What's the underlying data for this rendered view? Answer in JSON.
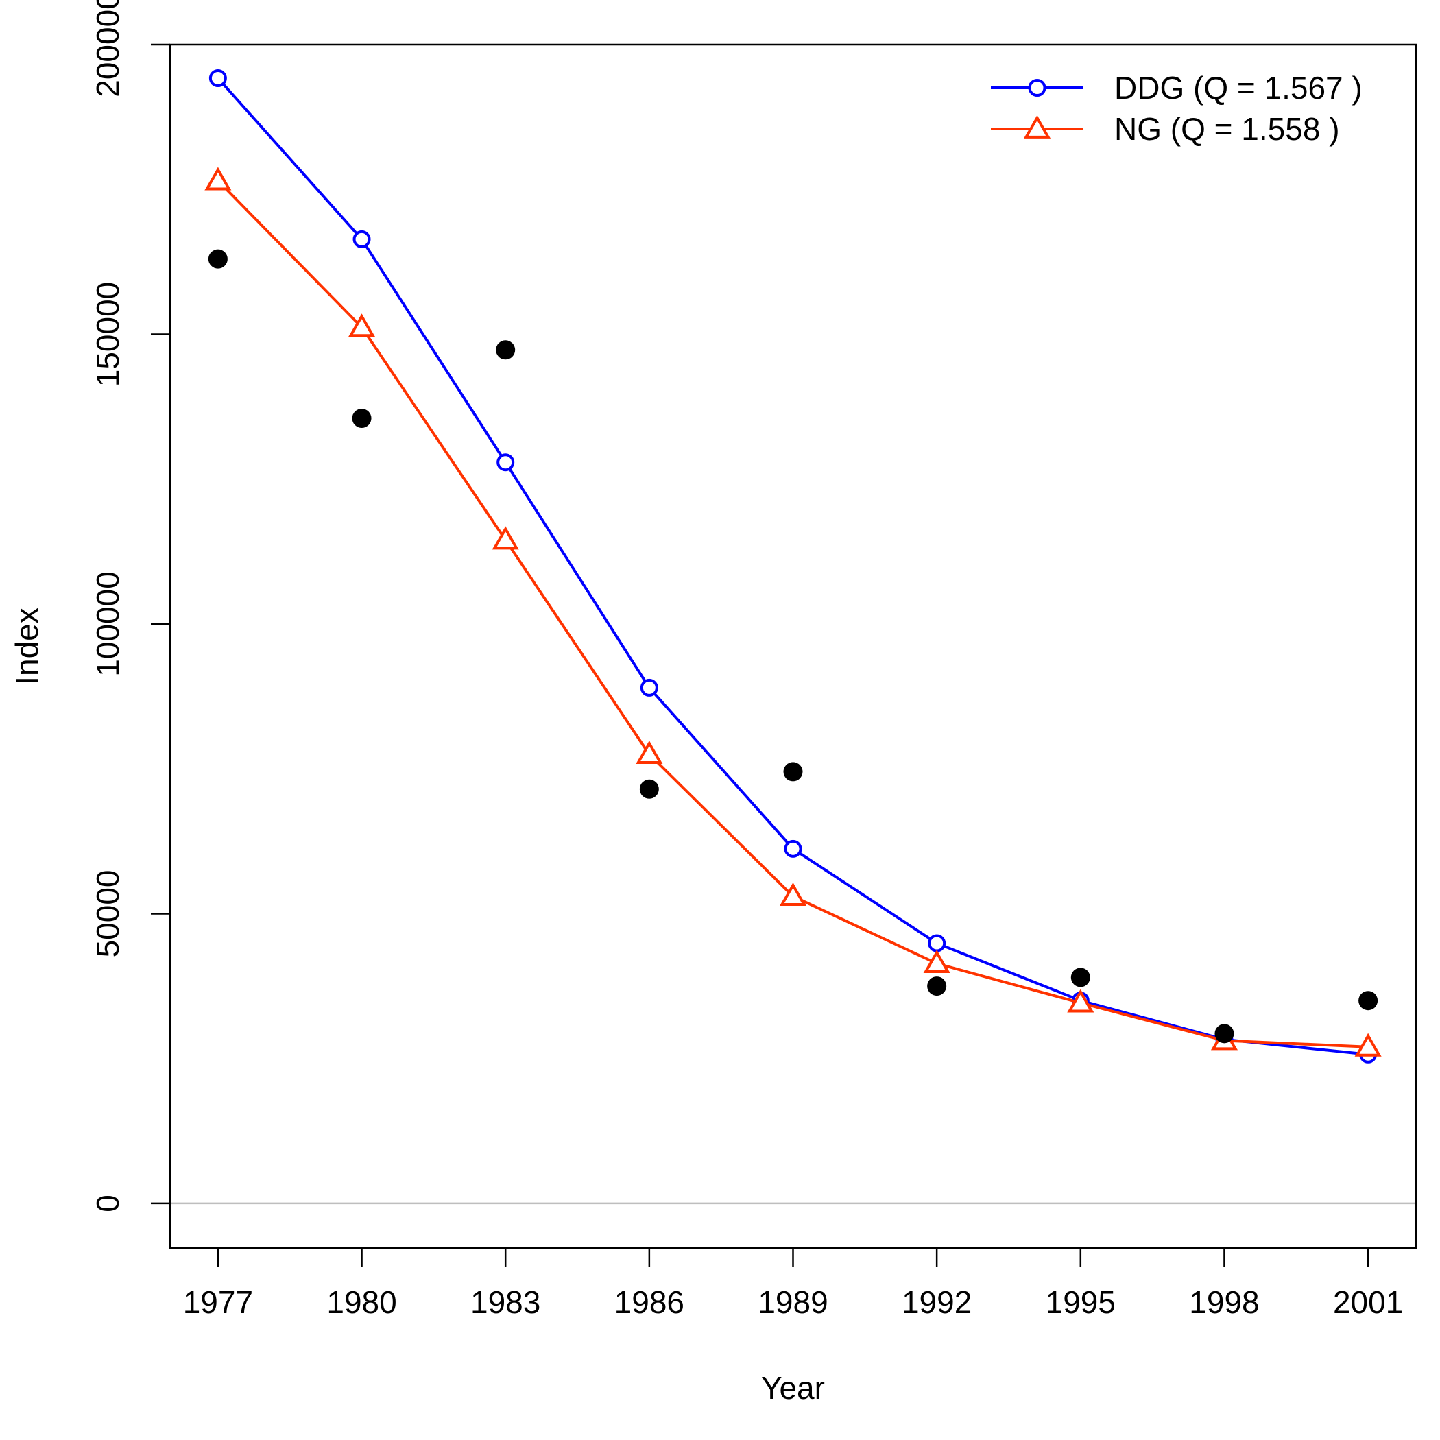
{
  "chart_data": {
    "type": "line",
    "title": "",
    "xlabel": "Year",
    "ylabel": "Index",
    "x": [
      1977,
      1980,
      1983,
      1986,
      1989,
      1992,
      1995,
      1998,
      2001
    ],
    "x_ticks": [
      "1977",
      "1980",
      "1983",
      "1986",
      "1989",
      "1992",
      "1995",
      "1998",
      "2001"
    ],
    "y_ticks": [
      "0",
      "50000",
      "100000",
      "150000",
      "200000"
    ],
    "xlim": [
      1976,
      2002
    ],
    "ylim": [
      -7700,
      200000
    ],
    "reference_line": {
      "y": 0,
      "color": "#bebebe"
    },
    "observed": {
      "marker": "filled-circle",
      "color": "#000000",
      "values": [
        163000,
        135500,
        147300,
        71500,
        74500,
        37500,
        39000,
        29300,
        35000
      ]
    },
    "series": [
      {
        "name": "DDG (Q = 1.567 )",
        "color": "#0000ff",
        "marker": "open-circle",
        "values": [
          194200,
          166400,
          127900,
          89000,
          61200,
          44900,
          35000,
          28300,
          25700
        ]
      },
      {
        "name": "NG (Q = 1.558 )",
        "color": "#ff3300",
        "marker": "open-triangle",
        "values": [
          176500,
          151200,
          114500,
          77500,
          53000,
          41400,
          34600,
          28100,
          27000
        ]
      }
    ],
    "legend_position": "top-right",
    "grid": false
  }
}
